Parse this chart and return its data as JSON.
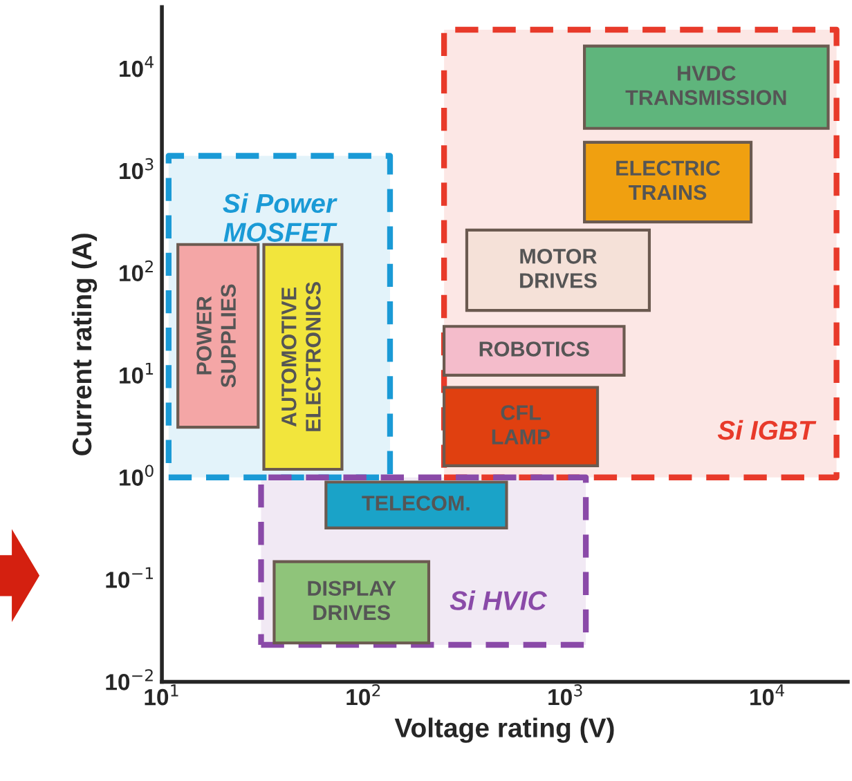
{
  "chart_data": {
    "type": "area",
    "xlabel": "Voltage rating (V)",
    "ylabel": "Current rating (A)",
    "log": "xy",
    "xlim": [
      10,
      25000
    ],
    "ylim": [
      0.01,
      40000
    ],
    "xticks": [
      {
        "value": 10,
        "label": "10$^{1}$"
      },
      {
        "value": 100,
        "label": "10$^{2}$"
      },
      {
        "value": 1000,
        "label": "10$^{3}$"
      },
      {
        "value": 10000,
        "label": "10$^{4}$"
      }
    ],
    "yticks": [
      {
        "value": 0.01,
        "label": "10$^{−2}$"
      },
      {
        "value": 0.1,
        "label": "10$^{−1}$"
      },
      {
        "value": 1,
        "label": "10$^{0}$"
      },
      {
        "value": 10,
        "label": "10$^{1}$"
      },
      {
        "value": 100,
        "label": "10$^{2}$"
      },
      {
        "value": 1000,
        "label": "10$^{3}$"
      },
      {
        "value": 10000,
        "label": "10$^{4}$"
      }
    ],
    "series": [
      {
        "name": "Si Power\nMOSFET",
        "line_style": "dashed",
        "color": "#1a9ad6",
        "x": [
          10.8,
          135,
          135,
          10.8,
          10.8
        ],
        "values": [
          1.0,
          1.0,
          1400,
          1400,
          1.0
        ]
      },
      {
        "name": "Si IGBT",
        "line_style": "dashed",
        "color": "#e83a2a",
        "x": [
          250,
          22000,
          22000,
          250,
          250
        ],
        "values": [
          1.0,
          1.0,
          24000,
          24000,
          1.0
        ]
      },
      {
        "name": "Si HVIC",
        "line_style": "dashed",
        "color": "#8a4aa8",
        "x": [
          31,
          1260,
          1260,
          31,
          31
        ],
        "values": [
          0.023,
          0.023,
          1.0,
          1.0,
          0.023
        ]
      },
      {
        "name": "POWER\nSUPPLIES",
        "color": "#f4a6a6",
        "x": [
          12,
          30,
          30,
          12,
          12
        ],
        "values": [
          3.1,
          3.1,
          190,
          190,
          3.1
        ]
      },
      {
        "name": "AUTOMOTIVE\nELECTRONICS",
        "color": "#f2e53c",
        "x": [
          32,
          78,
          78,
          32,
          32
        ],
        "values": [
          1.2,
          1.2,
          190,
          190,
          1.2
        ]
      },
      {
        "name": "TELECOM.",
        "color": "#1aa3c8",
        "x": [
          65,
          510,
          510,
          65,
          65
        ],
        "values": [
          0.32,
          0.32,
          0.9,
          0.9,
          0.32
        ]
      },
      {
        "name": "DISPLAY\nDRIVES",
        "color": "#8fc47a",
        "x": [
          36,
          210,
          210,
          36,
          36
        ],
        "values": [
          0.024,
          0.024,
          0.15,
          0.15,
          0.024
        ]
      },
      {
        "name": "HVDC\nTRANSMISSION",
        "color": "#5fb57c",
        "x": [
          1240,
          20000,
          20000,
          1240,
          1240
        ],
        "values": [
          2600,
          2600,
          16600,
          16600,
          2600
        ]
      },
      {
        "name": "ELECTRIC\nTRAINS",
        "color": "#f0a010",
        "x": [
          1240,
          8300,
          8300,
          1240,
          1240
        ],
        "values": [
          316,
          316,
          1900,
          1900,
          316
        ]
      },
      {
        "name": "MOTOR\nDRIVES",
        "color": "#f5e1d8",
        "x": [
          324,
          2600,
          2600,
          324,
          324
        ],
        "values": [
          43,
          43,
          263,
          263,
          43
        ]
      },
      {
        "name": "ROBOTICS",
        "color": "#f4bccb",
        "x": [
          250,
          1950,
          1950,
          250,
          250
        ],
        "values": [
          10,
          10,
          30,
          30,
          10
        ]
      },
      {
        "name": "CFL\nLAMP",
        "color": "#e04010",
        "x": [
          250,
          1440,
          1440,
          250,
          250
        ],
        "values": [
          1.3,
          1.3,
          7.6,
          7.6,
          1.3
        ]
      }
    ]
  }
}
